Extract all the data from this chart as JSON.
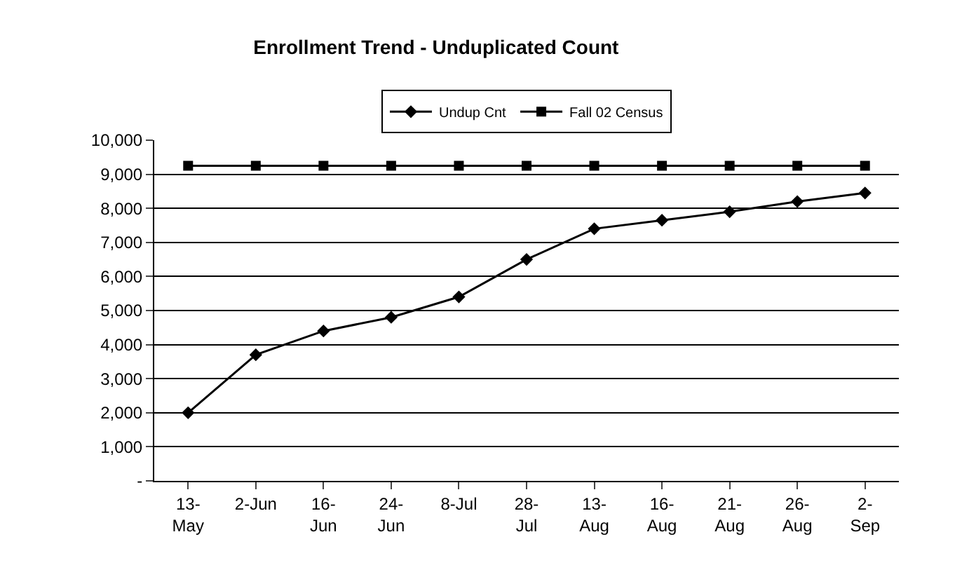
{
  "chart_data": {
    "type": "line",
    "title": "Enrollment Trend - Unduplicated Count",
    "categories": [
      "13-\nMay",
      "2-Jun",
      "16-\nJun",
      "24-\nJun",
      "8-Jul",
      "28-\nJul",
      "13-\nAug",
      "16-\nAug",
      "21-\nAug",
      "26-\nAug",
      "2-\nSep"
    ],
    "series": [
      {
        "name": "Undup Cnt",
        "color": "#000000",
        "marker": "diamond",
        "values": [
          2000,
          3700,
          4400,
          4800,
          5400,
          6500,
          7400,
          7650,
          7900,
          8200,
          8450
        ]
      },
      {
        "name": "Fall 02 Census",
        "color": "#000000",
        "marker": "square",
        "values": [
          9250,
          9250,
          9250,
          9250,
          9250,
          9250,
          9250,
          9250,
          9250,
          9250,
          9250
        ]
      }
    ],
    "ylim": [
      0,
      10000
    ],
    "yticks": [
      {
        "value": 0,
        "label": "-"
      },
      {
        "value": 1000,
        "label": "1,000"
      },
      {
        "value": 2000,
        "label": "2,000"
      },
      {
        "value": 3000,
        "label": "3,000"
      },
      {
        "value": 4000,
        "label": "4,000"
      },
      {
        "value": 5000,
        "label": "5,000"
      },
      {
        "value": 6000,
        "label": "6,000"
      },
      {
        "value": 7000,
        "label": "7,000"
      },
      {
        "value": 8000,
        "label": "8,000"
      },
      {
        "value": 9000,
        "label": "9,000"
      },
      {
        "value": 10000,
        "label": "10,000"
      }
    ],
    "grid": "y",
    "legend": "top",
    "line_style": "solid"
  }
}
